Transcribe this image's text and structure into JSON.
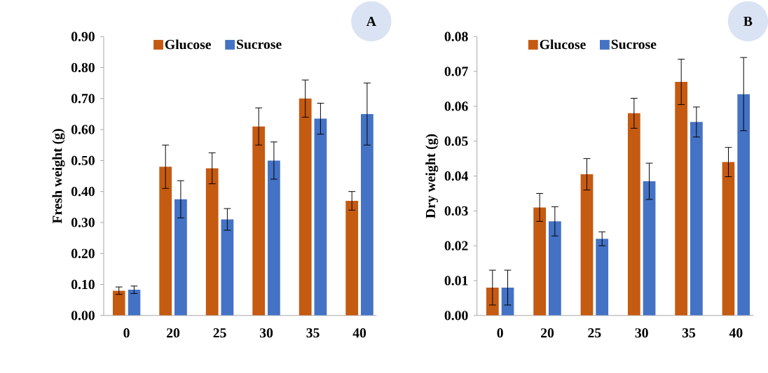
{
  "chart_data": [
    {
      "type": "bar",
      "title": "A",
      "ylabel": "Fresh weight (g)",
      "categories": [
        "0",
        "20",
        "25",
        "30",
        "35",
        "40"
      ],
      "legend": "top",
      "ylim": [
        0,
        0.9
      ],
      "yticks": [
        {
          "value": 0,
          "label": "0.00"
        },
        {
          "value": 0.1,
          "label": "0.10"
        },
        {
          "value": 0.2,
          "label": "0.20"
        },
        {
          "value": 0.3,
          "label": "0.30"
        },
        {
          "value": 0.4,
          "label": "0.40"
        },
        {
          "value": 0.5,
          "label": "0.50"
        },
        {
          "value": 0.6,
          "label": "0.60"
        },
        {
          "value": 0.7,
          "label": "0.70"
        },
        {
          "value": 0.8,
          "label": "0.80"
        },
        {
          "value": 0.9,
          "label": "0.90"
        }
      ],
      "series": [
        {
          "name": "Glucose",
          "color": "#c55a11",
          "values": [
            0.08,
            0.48,
            0.475,
            0.61,
            0.7,
            0.37
          ],
          "errors": [
            0.012,
            0.07,
            0.05,
            0.06,
            0.06,
            0.03
          ]
        },
        {
          "name": "Sucrose",
          "color": "#4472c4",
          "values": [
            0.083,
            0.375,
            0.31,
            0.5,
            0.635,
            0.65
          ],
          "errors": [
            0.012,
            0.06,
            0.035,
            0.06,
            0.05,
            0.1
          ]
        }
      ]
    },
    {
      "type": "bar",
      "title": "B",
      "ylabel": "Dry weight (g)",
      "categories": [
        "0",
        "20",
        "25",
        "30",
        "35",
        "40"
      ],
      "legend": "top",
      "ylim": [
        0,
        0.08
      ],
      "yticks": [
        {
          "value": 0,
          "label": "0.00"
        },
        {
          "value": 0.01,
          "label": "0.01"
        },
        {
          "value": 0.02,
          "label": "0.02"
        },
        {
          "value": 0.03,
          "label": "0.03"
        },
        {
          "value": 0.04,
          "label": "0.04"
        },
        {
          "value": 0.05,
          "label": "0.05"
        },
        {
          "value": 0.06,
          "label": "0.06"
        },
        {
          "value": 0.07,
          "label": "0.07"
        },
        {
          "value": 0.08,
          "label": "0.08"
        }
      ],
      "series": [
        {
          "name": "Glucose",
          "color": "#c55a11",
          "values": [
            0.008,
            0.031,
            0.0405,
            0.058,
            0.067,
            0.044
          ],
          "errors": [
            0.005,
            0.004,
            0.0045,
            0.0043,
            0.0065,
            0.0042
          ]
        },
        {
          "name": "Sucrose",
          "color": "#4472c4",
          "values": [
            0.008,
            0.027,
            0.022,
            0.0385,
            0.0555,
            0.0635
          ],
          "errors": [
            0.005,
            0.0042,
            0.002,
            0.0052,
            0.0043,
            0.0105
          ]
        }
      ]
    }
  ]
}
